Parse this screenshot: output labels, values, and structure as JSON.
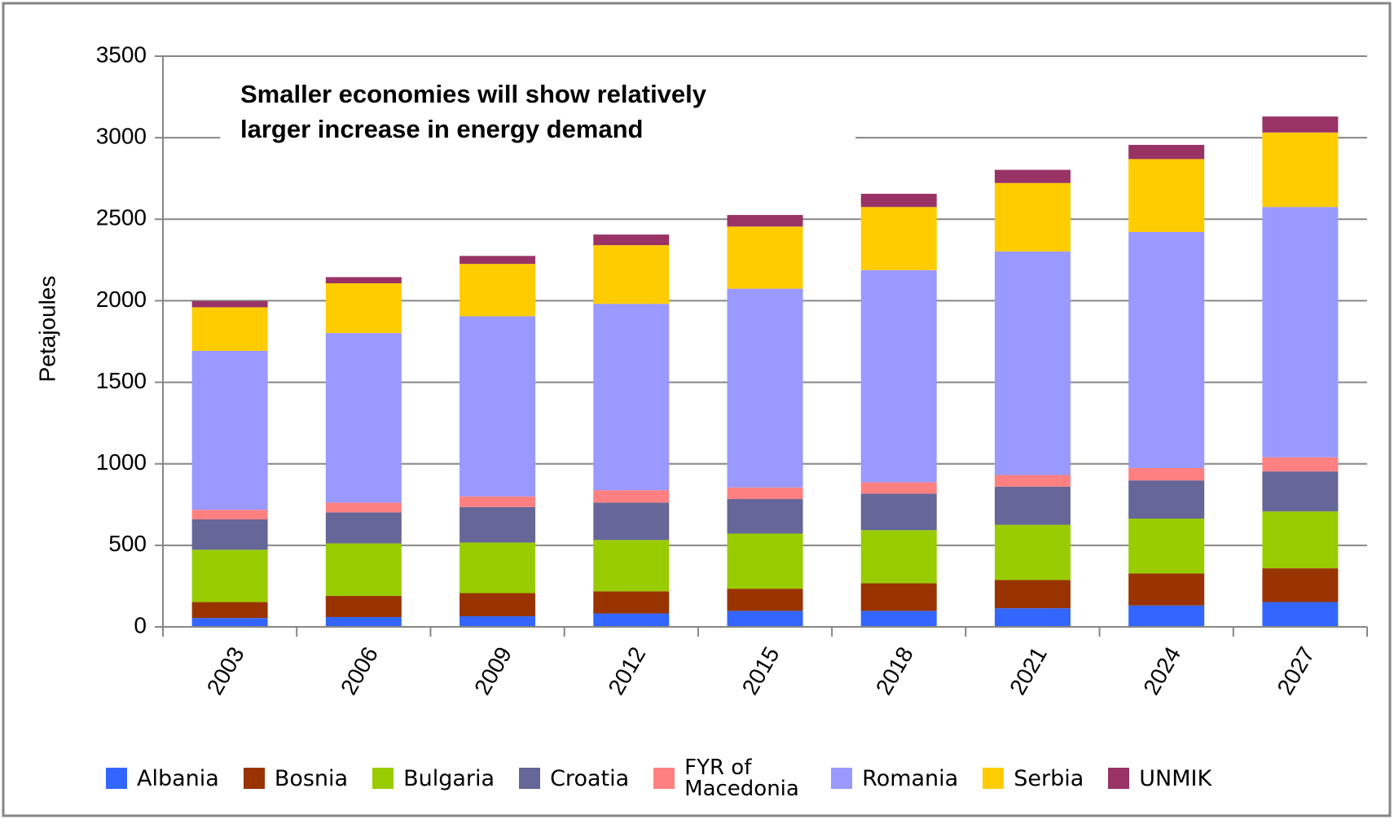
{
  "chart_data": {
    "type": "stacked_bar",
    "annotation": [
      "Smaller economies will show relatively",
      "larger increase in energy demand"
    ],
    "y_label": "Petajoules",
    "categories": [
      "2003",
      "2006",
      "2009",
      "2012",
      "2015",
      "2018",
      "2021",
      "2024",
      "2027"
    ],
    "series": [
      {
        "name": "Albania",
        "color": "#3366ff",
        "values": [
          54,
          60,
          65,
          82,
          98,
          98,
          114,
          131,
          152
        ]
      },
      {
        "name": "Bosnia",
        "color": "#993300",
        "values": [
          98,
          130,
          142,
          136,
          136,
          169,
          174,
          196,
          207
        ]
      },
      {
        "name": "Bulgaria",
        "color": "#99cc00",
        "values": [
          321,
          322,
          310,
          315,
          338,
          326,
          338,
          337,
          349
        ]
      },
      {
        "name": "Croatia",
        "color": "#666699",
        "values": [
          186,
          190,
          218,
          229,
          212,
          224,
          234,
          234,
          245
        ]
      },
      {
        "name": "FYR of Macedonia",
        "color": "#ff8080",
        "values": [
          59,
          60,
          65,
          76,
          71,
          70,
          71,
          76,
          87
        ]
      },
      {
        "name": "Romania",
        "color": "#9999ff",
        "values": [
          975,
          1040,
          1105,
          1143,
          1219,
          1301,
          1372,
          1448,
          1535
        ]
      },
      {
        "name": "Serbia",
        "color": "#ffcc00",
        "values": [
          267,
          305,
          321,
          360,
          381,
          387,
          419,
          447,
          457
        ]
      },
      {
        "name": "UNMIK",
        "color": "#993366",
        "values": [
          38,
          38,
          49,
          65,
          71,
          81,
          81,
          87,
          98
        ]
      }
    ],
    "ylim": [
      0,
      3500
    ],
    "yticks": [
      0,
      500,
      1000,
      1500,
      2000,
      2500,
      3000,
      3500
    ],
    "grid": true,
    "legend": "bottom"
  }
}
